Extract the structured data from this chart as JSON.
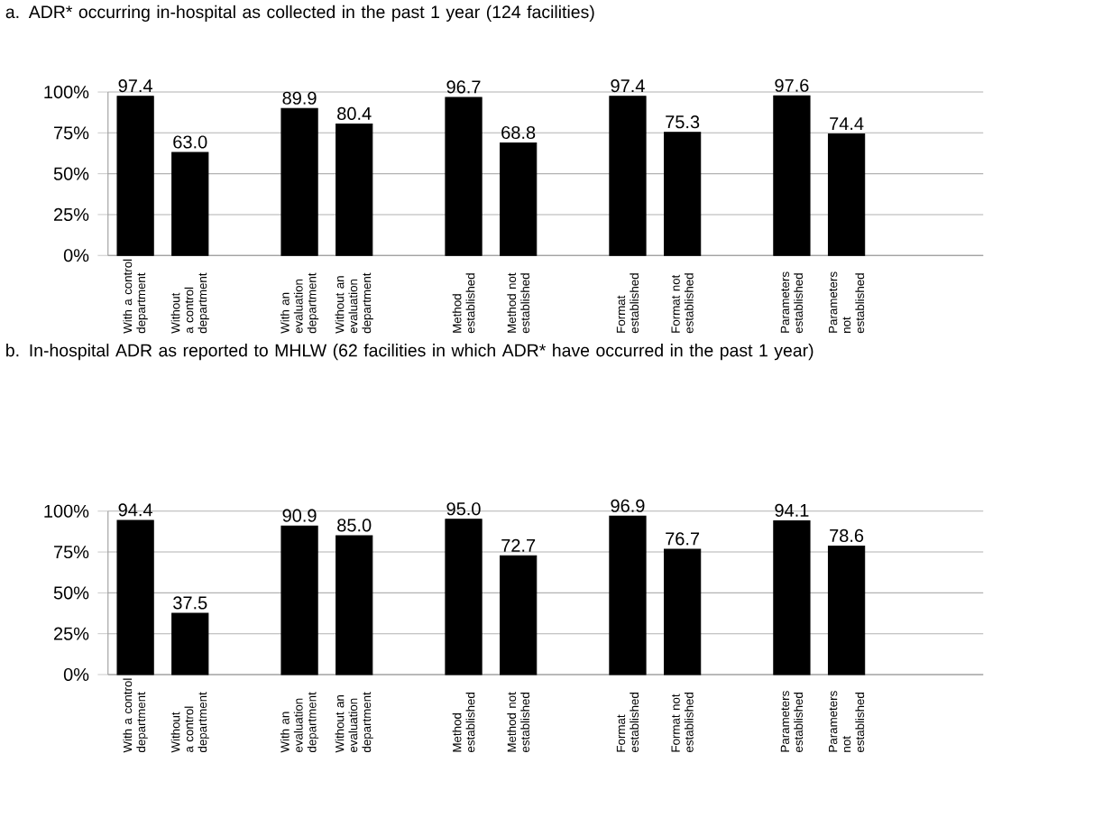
{
  "chart_data": [
    {
      "type": "bar",
      "title": "a. ADR* occurring in-hospital as collected in the past 1 year (124 facilities)",
      "categories": [
        "With a control department",
        "Without a control department",
        null,
        "With an evaluation department",
        "Without an evaluation department",
        null,
        "Method established",
        "Method not established",
        null,
        "Format established",
        "Format not established",
        null,
        "Parameters established",
        "Parameters not established"
      ],
      "values": [
        97.4,
        63.0,
        null,
        89.9,
        80.4,
        null,
        96.7,
        68.8,
        null,
        97.4,
        75.3,
        null,
        97.6,
        74.4
      ],
      "value_labels": [
        "97.4",
        "63.0",
        null,
        "89.9",
        "80.4",
        null,
        "96.7",
        "68.8",
        null,
        "97.4",
        "75.3",
        null,
        "97.6",
        "74.4"
      ],
      "color": "#000000",
      "ylim": [
        0,
        100
      ],
      "yticks": [
        {
          "value": 0,
          "label": "0%"
        },
        {
          "value": 25,
          "label": "25%"
        },
        {
          "value": 50,
          "label": "50%"
        },
        {
          "value": 75,
          "label": "75%"
        },
        {
          "value": 100,
          "label": "100%"
        }
      ],
      "grid": "y"
    },
    {
      "type": "bar",
      "title": "b. In-hospital ADR as reported to MHLW (62 facilities in which ADR* have occurred in the past 1 year)",
      "categories": [
        "With a control department",
        "Without a control department",
        null,
        "With an evaluation department",
        "Without an evaluation department",
        null,
        "Method established",
        "Method not established",
        null,
        "Format established",
        "Format not established",
        null,
        "Parameters established",
        "Parameters not established"
      ],
      "values": [
        94.4,
        37.5,
        null,
        90.9,
        85.0,
        null,
        95.0,
        72.7,
        null,
        96.9,
        76.7,
        null,
        94.1,
        78.6
      ],
      "value_labels": [
        "94.4",
        "37.5",
        null,
        "90.9",
        "85.0",
        null,
        "95.0",
        "72.7",
        null,
        "96.9",
        "76.7",
        null,
        "94.1",
        "78.6"
      ],
      "color": "#000000",
      "ylim": [
        0,
        100
      ],
      "yticks": [
        {
          "value": 0,
          "label": "0%"
        },
        {
          "value": 25,
          "label": "25%"
        },
        {
          "value": 50,
          "label": "50%"
        },
        {
          "value": 75,
          "label": "75%"
        },
        {
          "value": 100,
          "label": "100%"
        }
      ],
      "grid": "y"
    }
  ]
}
